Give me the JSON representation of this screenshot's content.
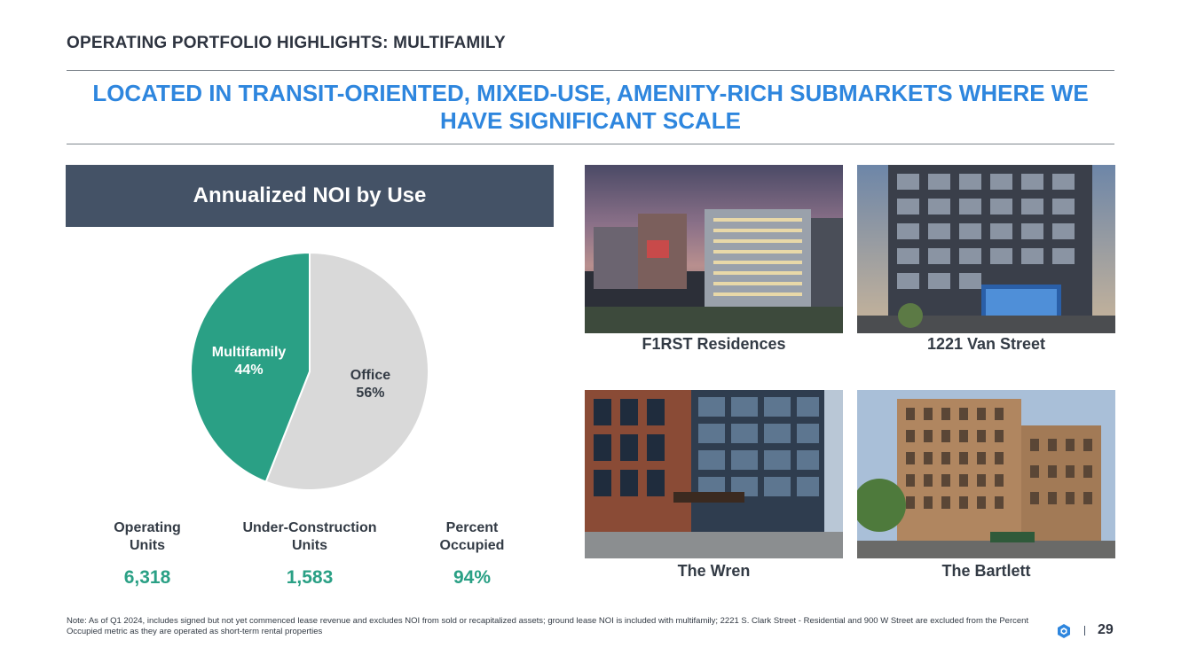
{
  "header": {
    "section_title": "OPERATING PORTFOLIO HIGHLIGHTS: MULTIFAMILY",
    "headline": "LOCATED IN TRANSIT-ORIENTED, MIXED-USE, AMENITY-RICH SUBMARKETS WHERE WE HAVE SIGNIFICANT SCALE"
  },
  "noi_banner": {
    "title": "Annualized NOI by Use"
  },
  "chart_data": {
    "type": "pie",
    "title": "Annualized NOI by Use",
    "categories": [
      "Office",
      "Multifamily"
    ],
    "values": [
      56,
      44
    ],
    "labels": [
      {
        "name": "Office",
        "pct": "56%"
      },
      {
        "name": "Multifamily",
        "pct": "44%"
      }
    ],
    "colors": [
      "#d9d9d9",
      "#2aa085"
    ]
  },
  "stats": [
    {
      "label": "Operating\nUnits",
      "value": "6,318"
    },
    {
      "label": "Under-Construction\nUnits",
      "value": "1,583"
    },
    {
      "label": "Percent\nOccupied",
      "value": "94%"
    }
  ],
  "properties": [
    {
      "name": "F1RST Residences"
    },
    {
      "name": "1221 Van Street"
    },
    {
      "name": "The Wren"
    },
    {
      "name": "The Bartlett"
    }
  ],
  "footer": {
    "note": "Note: As of Q1 2024, includes signed but not yet commenced lease revenue and excludes NOI from sold or recapitalized assets; ground lease NOI is included with multifamily; 2221 S. Clark Street - Residential and 900 W Street are excluded from the Percent Occupied metric as they are operated as short-term rental properties",
    "page_number": "29"
  },
  "colors": {
    "accent_blue": "#2e86de",
    "banner": "#445266",
    "teal": "#2aa085",
    "grey_slice": "#d9d9d9"
  }
}
